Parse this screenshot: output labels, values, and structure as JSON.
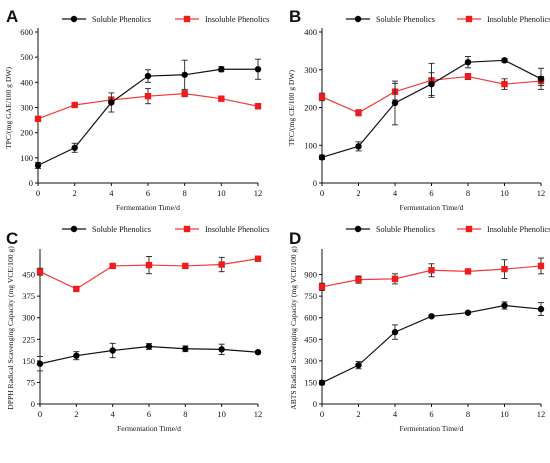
{
  "chart_data": [
    {
      "panel": "A",
      "type": "line",
      "xlabel": "Fermentation Time/d",
      "ylabel": "TPC/(mg GAE/100 g DW)",
      "x": [
        0,
        2,
        4,
        6,
        8,
        10,
        12
      ],
      "xlim": [
        0,
        12
      ],
      "ylim": [
        0,
        600
      ],
      "yticks": [
        0,
        100,
        200,
        300,
        400,
        500,
        600
      ],
      "grid": false,
      "legend_position": "top",
      "series": [
        {
          "name": "Soluble Phenolics",
          "color": "#000000",
          "marker": "circle",
          "values": [
            70,
            140,
            320,
            425,
            430,
            452,
            452
          ],
          "errors": [
            12,
            18,
            38,
            25,
            58,
            10,
            40
          ]
        },
        {
          "name": "Insoluble Phenolics",
          "color": "#ee1c1c",
          "marker": "square",
          "values": [
            255,
            310,
            330,
            345,
            355,
            335,
            305
          ],
          "errors": [
            8,
            8,
            12,
            30,
            12,
            8,
            10
          ]
        }
      ]
    },
    {
      "panel": "B",
      "type": "line",
      "xlabel": "Fermentation Time/d",
      "ylabel": "TFC/(mg CE/100 g DW)",
      "x": [
        0,
        2,
        4,
        6,
        8,
        10,
        12
      ],
      "xlim": [
        0,
        12
      ],
      "ylim": [
        0,
        400
      ],
      "yticks": [
        0,
        100,
        200,
        300,
        400
      ],
      "grid": false,
      "legend_position": "top",
      "series": [
        {
          "name": "Soluble Phenolics",
          "color": "#000000",
          "marker": "circle",
          "values": [
            68,
            97,
            212,
            262,
            320,
            325,
            276
          ],
          "errors": [
            6,
            12,
            58,
            30,
            15,
            5,
            28
          ]
        },
        {
          "name": "Insoluble Phenolics",
          "color": "#ee1c1c",
          "marker": "square",
          "values": [
            228,
            186,
            242,
            272,
            282,
            262,
            270
          ],
          "errors": [
            10,
            8,
            22,
            45,
            8,
            14,
            12
          ]
        }
      ]
    },
    {
      "panel": "C",
      "type": "line",
      "xlabel": "Fermentation Time/d",
      "ylabel": "DPPH Radical Scavenging Capacity (mg VCE/100 g)",
      "x": [
        0,
        2,
        4,
        6,
        8,
        10,
        12
      ],
      "xlim": [
        0,
        12
      ],
      "ylim": [
        0,
        525
      ],
      "yticks": [
        0,
        75,
        150,
        225,
        300,
        375,
        450
      ],
      "grid": false,
      "legend_position": "top",
      "series": [
        {
          "name": "Soluble Phenolics",
          "color": "#000000",
          "marker": "circle",
          "values": [
            140,
            168,
            186,
            200,
            192,
            190,
            180
          ],
          "errors": [
            25,
            14,
            25,
            10,
            10,
            18,
            5
          ]
        },
        {
          "name": "Insoluble Phenolics",
          "color": "#ee1c1c",
          "marker": "square",
          "values": [
            460,
            400,
            480,
            483,
            480,
            485,
            505
          ],
          "errors": [
            12,
            8,
            5,
            30,
            8,
            25,
            8
          ]
        }
      ]
    },
    {
      "panel": "D",
      "type": "line",
      "xlabel": "Fermentation Time/d",
      "ylabel": "ABTS Radical Scavenging Capacity (mg VCE/100 g)",
      "x": [
        0,
        2,
        4,
        6,
        8,
        10,
        12
      ],
      "xlim": [
        0,
        12
      ],
      "ylim": [
        0,
        1050
      ],
      "yticks": [
        0,
        150,
        300,
        450,
        600,
        750,
        900
      ],
      "grid": false,
      "legend_position": "top",
      "series": [
        {
          "name": "Soluble Phenolics",
          "color": "#000000",
          "marker": "circle",
          "values": [
            148,
            270,
            500,
            610,
            635,
            685,
            660
          ],
          "errors": [
            15,
            25,
            50,
            8,
            8,
            25,
            45
          ]
        },
        {
          "name": "Insoluble Phenolics",
          "color": "#ee1c1c",
          "marker": "square",
          "values": [
            815,
            865,
            870,
            930,
            922,
            938,
            960
          ],
          "errors": [
            25,
            25,
            35,
            45,
            12,
            65,
            55
          ]
        }
      ]
    }
  ]
}
